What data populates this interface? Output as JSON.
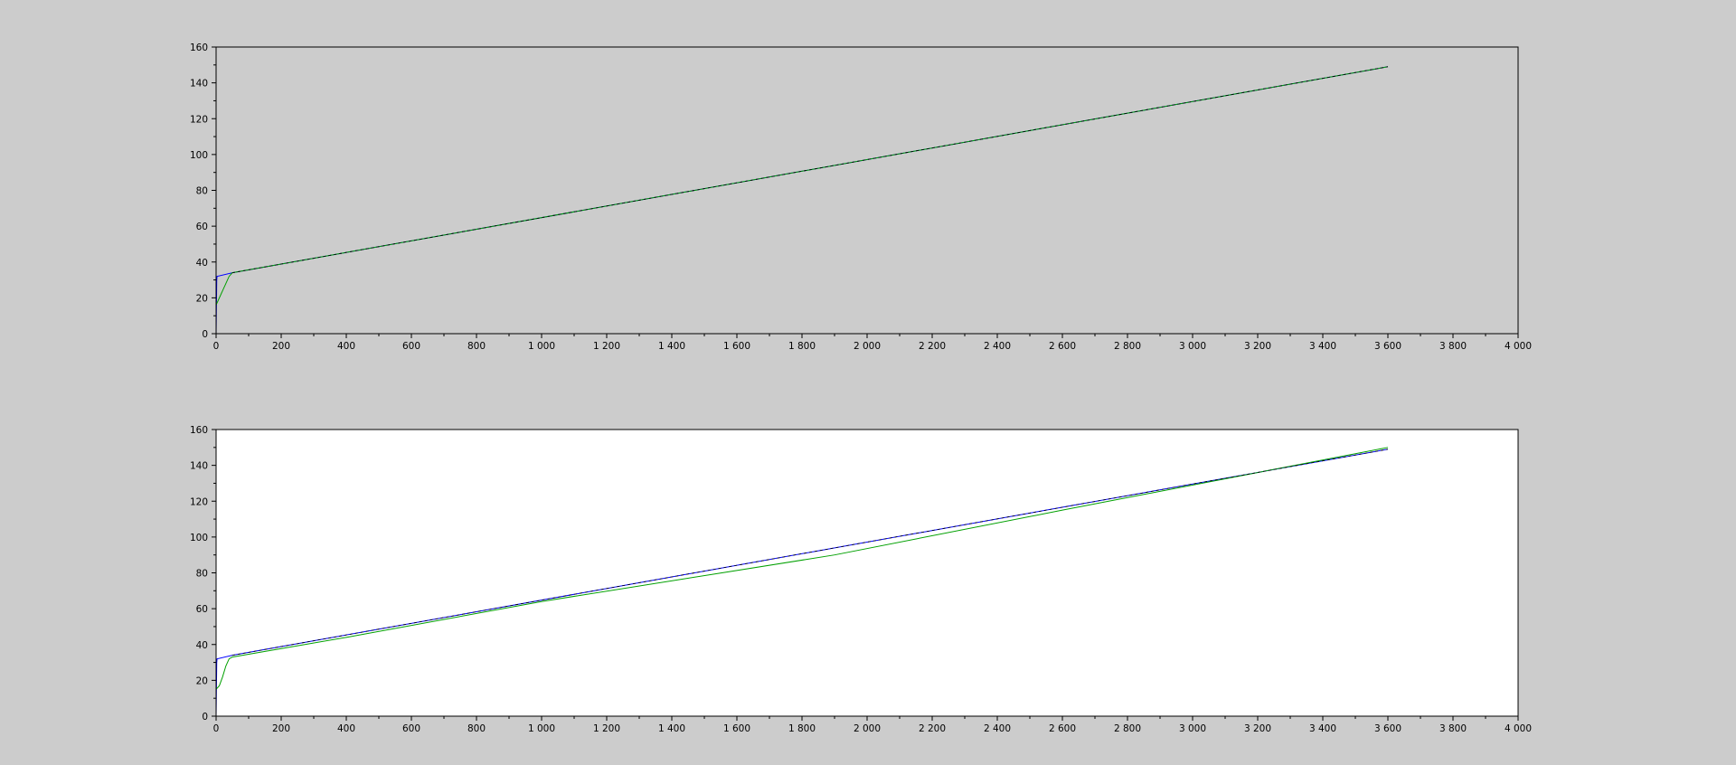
{
  "colors": {
    "figure_background": "#cccccc",
    "axes_frame": "#000000",
    "series_blue": "#0000ff",
    "series_green": "#00a000",
    "series_dark": "#000000"
  },
  "chart_data": [
    {
      "type": "line",
      "title": "",
      "xlabel": "",
      "ylabel": "",
      "axes_background": "#cccccc",
      "xlim": [
        0,
        4000
      ],
      "ylim": [
        0,
        160
      ],
      "grid": false,
      "legend": "none",
      "xticks": [
        0,
        200,
        400,
        600,
        800,
        1000,
        1200,
        1400,
        1600,
        1800,
        2000,
        2200,
        2400,
        2600,
        2800,
        3000,
        3200,
        3400,
        3600,
        3800,
        4000
      ],
      "xtick_labels": [
        "0",
        "200",
        "400",
        "600",
        "800",
        "1 000",
        "1 200",
        "1 400",
        "1 600",
        "1 800",
        "2 000",
        "2 200",
        "2 400",
        "2 600",
        "2 800",
        "3 000",
        "3 200",
        "3 400",
        "3 600",
        "3 800",
        "4 000"
      ],
      "yticks": [
        0,
        20,
        40,
        60,
        80,
        100,
        120,
        140,
        160
      ],
      "ytick_labels": [
        "0",
        "20",
        "40",
        "60",
        "80",
        "100",
        "120",
        "140",
        "160"
      ],
      "series": [
        {
          "color": "#0000ff",
          "x": [
            0,
            2,
            3,
            50,
            3600
          ],
          "y": [
            0,
            30,
            32,
            34,
            149
          ]
        },
        {
          "color": "#00a000",
          "x": [
            0,
            10,
            20,
            30,
            40,
            50,
            3600
          ],
          "y": [
            16,
            20,
            24,
            28,
            32,
            34,
            149
          ]
        },
        {
          "color": "#000000",
          "dashed": true,
          "x": [
            50,
            3600
          ],
          "y": [
            34,
            149
          ]
        }
      ]
    },
    {
      "type": "line",
      "title": "",
      "xlabel": "",
      "ylabel": "",
      "axes_background": "#ffffff",
      "xlim": [
        0,
        4000
      ],
      "ylim": [
        0,
        160
      ],
      "grid": false,
      "legend": "none",
      "xticks": [
        0,
        200,
        400,
        600,
        800,
        1000,
        1200,
        1400,
        1600,
        1800,
        2000,
        2200,
        2400,
        2600,
        2800,
        3000,
        3200,
        3400,
        3600,
        3800,
        4000
      ],
      "xtick_labels": [
        "0",
        "200",
        "400",
        "600",
        "800",
        "1 000",
        "1 200",
        "1 400",
        "1 600",
        "1 800",
        "2 000",
        "2 200",
        "2 400",
        "2 600",
        "2 800",
        "3 000",
        "3 200",
        "3 400",
        "3 600",
        "3 800",
        "4 000"
      ],
      "yticks": [
        0,
        20,
        40,
        60,
        80,
        100,
        120,
        140,
        160
      ],
      "ytick_labels": [
        "0",
        "20",
        "40",
        "60",
        "80",
        "100",
        "120",
        "140",
        "160"
      ],
      "series": [
        {
          "color": "#0000ff",
          "x": [
            0,
            2,
            3,
            50,
            3600
          ],
          "y": [
            0,
            30,
            32,
            34,
            149
          ]
        },
        {
          "color": "#00a000",
          "x": [
            0,
            10,
            20,
            30,
            40,
            50,
            400,
            1000,
            1900,
            2600,
            3600
          ],
          "y": [
            15,
            17,
            22,
            28,
            32,
            33,
            44,
            64,
            90,
            115,
            150
          ]
        },
        {
          "color": "#000000",
          "dashed": true,
          "x": [
            50,
            3600
          ],
          "y": [
            34,
            149
          ]
        }
      ]
    }
  ]
}
